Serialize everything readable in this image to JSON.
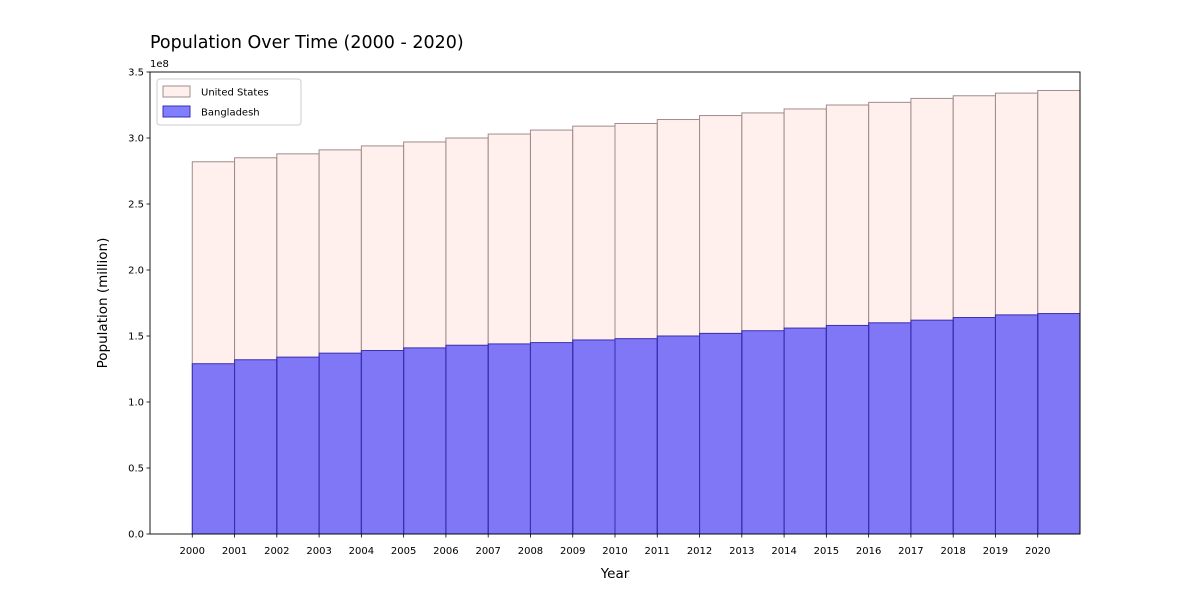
{
  "chart_data": {
    "type": "bar",
    "stacking": "overlay",
    "title": "Population Over Time (2000 - 2020)",
    "xlabel": "Year",
    "ylabel": "Population (million)",
    "y_offset_label": "1e8",
    "ylim": [
      0,
      350000000
    ],
    "yticks": [
      0,
      50000000,
      100000000,
      150000000,
      200000000,
      250000000,
      300000000,
      350000000
    ],
    "ytick_labels": [
      "0.0",
      "0.5",
      "1.0",
      "1.5",
      "2.0",
      "2.5",
      "3.0",
      "3.5"
    ],
    "bin_edges": [
      2000,
      2001,
      2002,
      2003,
      2004,
      2005,
      2006,
      2007,
      2008,
      2009,
      2010,
      2011,
      2012,
      2013,
      2014,
      2015,
      2016,
      2017,
      2018,
      2019,
      2020
    ],
    "xtick_labels": [
      "2000",
      "2001",
      "2002",
      "2003",
      "2004",
      "2005",
      "2006",
      "2007",
      "2008",
      "2009",
      "2010",
      "2011",
      "2012",
      "2013",
      "2014",
      "2015",
      "2016",
      "2017",
      "2018",
      "2019",
      "2020"
    ],
    "grid": false,
    "legend_position": "upper-left",
    "series": [
      {
        "name": "United States",
        "color": "#ffe4e1",
        "edge_color": "#a08c8c",
        "opacity": 0.6,
        "values": [
          282000000,
          285000000,
          288000000,
          291000000,
          294000000,
          297000000,
          300000000,
          303000000,
          306000000,
          309000000,
          311000000,
          314000000,
          317000000,
          319000000,
          322000000,
          325000000,
          327000000,
          330000000,
          332000000,
          334000000,
          336000000
        ]
      },
      {
        "name": "Bangladesh",
        "color": "#0000ff",
        "edge_color": "#3a2fb0",
        "opacity": 0.5,
        "values": [
          129000000,
          132000000,
          134000000,
          137000000,
          139000000,
          141000000,
          143000000,
          144000000,
          145000000,
          147000000,
          148000000,
          150000000,
          152000000,
          154000000,
          156000000,
          158000000,
          160000000,
          162000000,
          164000000,
          166000000,
          167000000
        ]
      }
    ]
  }
}
